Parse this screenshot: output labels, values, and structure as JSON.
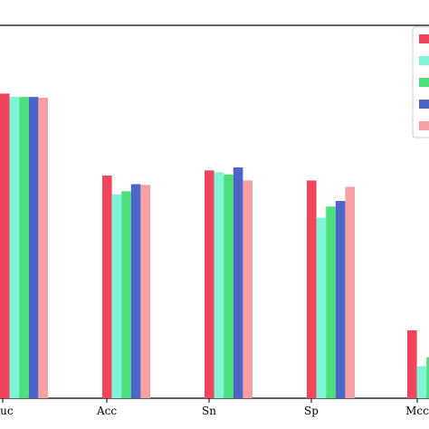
{
  "chart_data": {
    "type": "bar",
    "categories": [
      "Auc",
      "Acc",
      "Sn",
      "Sp",
      "Mcc"
    ],
    "ylim": [
      0,
      1.0
    ],
    "grid": false,
    "legend": {
      "placement": "top-right",
      "entries_labels_visible": false
    },
    "series": [
      {
        "color": "#f0455a",
        "values": [
          0.817,
          0.597,
          0.611,
          0.584,
          0.182
        ]
      },
      {
        "color": "#7ff5d8",
        "values": [
          0.808,
          0.547,
          0.606,
          0.484,
          0.086
        ]
      },
      {
        "color": "#4ce07c",
        "values": [
          0.808,
          0.555,
          0.6,
          0.514,
          0.11
        ]
      },
      {
        "color": "#4b66c8",
        "values": [
          0.808,
          0.574,
          0.619,
          0.529,
          null
        ]
      },
      {
        "color": "#f7a0a3",
        "values": [
          0.806,
          0.572,
          0.584,
          0.567,
          null
        ]
      }
    ]
  }
}
